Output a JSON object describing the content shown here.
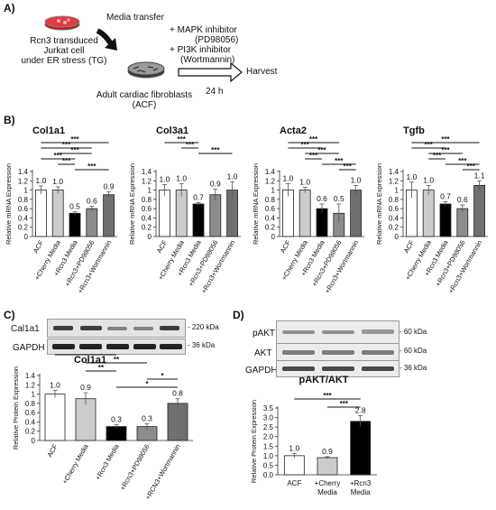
{
  "panel_a": {
    "label": "A)",
    "cell_text": [
      "Rcn3 transduced",
      "Jurkat cell",
      "under ER stress (TG)"
    ],
    "media_transfer": "Media transfer",
    "inhibitors": [
      "+ MAPK inhibitor",
      "(PD98056)",
      "+ PI3K inhibitor",
      "(Wortmannin)"
    ],
    "harvest": "Harvest",
    "time": "24 h",
    "fibro_text": [
      "Adult cardiac fibroblasts",
      "(ACF)"
    ]
  },
  "panel_b_label": "B)",
  "panel_c_label": "C)",
  "panel_d_label": "D)",
  "blots_c": {
    "rows": [
      {
        "name": "Cal1a1",
        "kda": "- 220 kDa"
      },
      {
        "name": "GAPDH",
        "kda": "- 36 kDa"
      }
    ]
  },
  "blots_d": {
    "rows": [
      {
        "name": "pAKT",
        "kda": "- 60 kDa"
      },
      {
        "name": "AKT",
        "kda": "- 60 kDa"
      },
      {
        "name": "GAPDH",
        "kda": "- 36 kDa"
      }
    ]
  },
  "chart_data": [
    {
      "id": "col1a1_mrna",
      "type": "bar",
      "title": "Col1a1",
      "ylabel": "Relative mRNA Expression",
      "ylim": [
        0,
        1.4
      ],
      "yticks": [
        "0",
        "0.2",
        "0.4",
        "0.6",
        "0.8",
        "1",
        "1.2",
        "1.4"
      ],
      "categories": [
        "ACF",
        "+Cherry Media",
        "+Rcn3 Media",
        "+Rcn3+PD98056",
        "+Rcn3+Wortmannin"
      ],
      "values": [
        1.0,
        1.0,
        0.5,
        0.6,
        0.9
      ],
      "value_labels": [
        "1.0",
        "1.0",
        "0.5",
        "0.6",
        "0.9"
      ],
      "errors": [
        0.09,
        0.07,
        0.03,
        0.05,
        0.06
      ],
      "colors": [
        "#ffffff",
        "#cccccc",
        "#000000",
        "#8c8c8c",
        "#707070"
      ],
      "sig_labels": [
        "***",
        "***",
        "***",
        "***",
        "***",
        "***"
      ]
    },
    {
      "id": "col3a1_mrna",
      "type": "bar",
      "title": "Col3a1",
      "ylabel": "Relative mRNA Expression",
      "ylim": [
        0,
        1.4
      ],
      "yticks": [
        "0",
        "0.2",
        "0.4",
        "0.6",
        "0.8",
        "1",
        "1.2",
        "1.4"
      ],
      "categories": [
        "ACF",
        "+Cherry Media",
        "+Rcn3 Media",
        "+Rcn3+PD98056",
        "+Rcn3+Wortmannin"
      ],
      "values": [
        1.0,
        1.0,
        0.7,
        0.9,
        1.0
      ],
      "value_labels": [
        "1.0",
        "1.0",
        "0.7",
        "0.9",
        "1.0"
      ],
      "errors": [
        0.12,
        0.14,
        0.03,
        0.12,
        0.18
      ],
      "colors": [
        "#ffffff",
        "#cccccc",
        "#000000",
        "#8c8c8c",
        "#707070"
      ],
      "sig_labels": [
        "***",
        "***",
        "***"
      ]
    },
    {
      "id": "acta2_mrna",
      "type": "bar",
      "title": "Acta2",
      "ylabel": "Relative mRNA Expression",
      "ylim": [
        0,
        1.4
      ],
      "yticks": [
        "0",
        "0.2",
        "0.4",
        "0.6",
        "0.8",
        "1",
        "1.2",
        "1.4"
      ],
      "categories": [
        "ACF",
        "+Cherry Media",
        "+Rcn3 Media",
        "+Rcn3+PD98056",
        "+Rcn3+Wortmannin"
      ],
      "values": [
        1.0,
        1.0,
        0.6,
        0.5,
        1.0
      ],
      "value_labels": [
        "1.0",
        "1.0",
        "0.6",
        "0.5",
        "1.0"
      ],
      "errors": [
        0.14,
        0.06,
        0.1,
        0.2,
        0.1
      ],
      "colors": [
        "#ffffff",
        "#cccccc",
        "#000000",
        "#8c8c8c",
        "#707070"
      ],
      "sig_labels": [
        "***",
        "***",
        "***",
        "***",
        "***",
        "***"
      ]
    },
    {
      "id": "tgfb_mrna",
      "type": "bar",
      "title": "Tgfb",
      "ylabel": "Relative mRNA Expression",
      "ylim": [
        0,
        1.4
      ],
      "yticks": [
        "0",
        "0.2",
        "0.4",
        "0.6",
        "0.8",
        "1",
        "1.2",
        "1.4"
      ],
      "categories": [
        "ACF",
        "+Cherry Media",
        "+Rcn3 Media",
        "+Rcn3+PD98056",
        "+Rcn3+Wortmannin"
      ],
      "values": [
        1.0,
        1.0,
        0.7,
        0.6,
        1.1
      ],
      "value_labels": [
        "1.0",
        "1.0",
        "0.7",
        "0.6",
        "1.1"
      ],
      "errors": [
        0.17,
        0.1,
        0.05,
        0.08,
        0.1
      ],
      "colors": [
        "#ffffff",
        "#cccccc",
        "#000000",
        "#8c8c8c",
        "#707070"
      ],
      "sig_labels": [
        "***",
        "***",
        "***",
        "***",
        "***",
        "***"
      ]
    },
    {
      "id": "col1a1_protein",
      "type": "bar",
      "title": "Col1a1",
      "ylabel": "Relative Protein Expression",
      "ylim": [
        0,
        1.4
      ],
      "yticks": [
        "0",
        "0.2",
        "0.4",
        "0.6",
        "0.8",
        "1",
        "1.2",
        "1.4"
      ],
      "categories": [
        "ACF",
        "+Cherry Media",
        "+Rcn3 Media",
        "+Rcn3+PD98056",
        "+RCN3+Wortmannin"
      ],
      "values": [
        1.0,
        0.9,
        0.3,
        0.3,
        0.8
      ],
      "value_labels": [
        "1.0",
        "0.9",
        "0.3",
        "0.3",
        "0.8"
      ],
      "errors": [
        0.08,
        0.13,
        0.04,
        0.06,
        0.1
      ],
      "colors": [
        "#ffffff",
        "#cccccc",
        "#000000",
        "#8c8c8c",
        "#707070"
      ],
      "sig_labels": [
        "**",
        "**",
        "**",
        "**",
        "*",
        "*"
      ]
    },
    {
      "id": "pakt_akt",
      "type": "bar",
      "title": "pAKT/AKT",
      "ylabel": "Relative Protein Expression",
      "ylim": [
        0,
        3.5
      ],
      "yticks": [
        "0.0",
        "0.5",
        "1.0",
        "1.5",
        "2.0",
        "2.5",
        "3.0",
        "3.5"
      ],
      "categories": [
        "ACF",
        "+Cherry Media",
        "+Rcn3 Media"
      ],
      "values": [
        1.0,
        0.9,
        2.8
      ],
      "value_labels": [
        "1.0",
        "0.9",
        "2.8"
      ],
      "errors": [
        0.12,
        0.05,
        0.3
      ],
      "colors": [
        "#ffffff",
        "#cccccc",
        "#000000"
      ],
      "sig_labels": [
        "***",
        "***"
      ]
    }
  ]
}
